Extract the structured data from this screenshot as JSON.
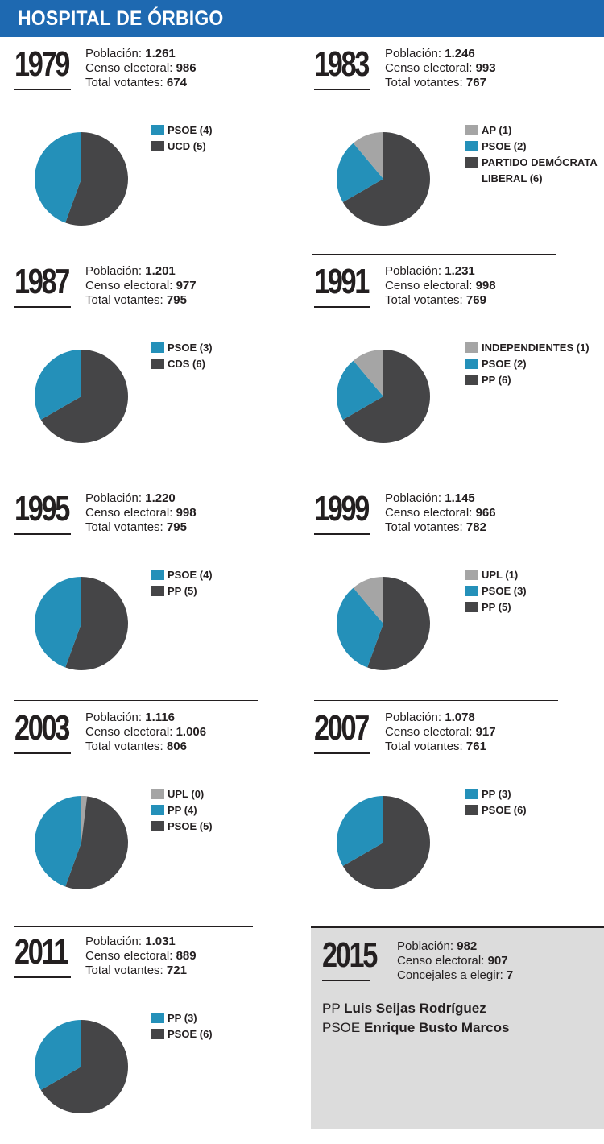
{
  "header": {
    "title": "HOSPITAL DE ÓRBIGO"
  },
  "labels": {
    "poblacion": "Población:",
    "censo": "Censo electoral:",
    "votantes": "Total votantes:",
    "concejales": "Concejales a elegir:"
  },
  "colors": {
    "gray": "#a5a5a5",
    "blue": "#2490b9",
    "dark": "#454547"
  },
  "elections": [
    {
      "year": "1979",
      "poblacion": "1.261",
      "censo": "986",
      "votantes": "674",
      "legend": [
        {
          "label": "PSOE (4)",
          "color": "blue"
        },
        {
          "label": "UCD (5)",
          "color": "dark"
        }
      ]
    },
    {
      "year": "1983",
      "poblacion": "1.246",
      "censo": "993",
      "votantes": "767",
      "legend": [
        {
          "label": "AP (1)",
          "color": "gray"
        },
        {
          "label": "PSOE (2)",
          "color": "blue"
        },
        {
          "label": "PARTIDO DEMÓCRATA",
          "color": "dark"
        },
        {
          "label": "LIBERAL (6)",
          "color": null
        }
      ]
    },
    {
      "year": "1987",
      "poblacion": "1.201",
      "censo": "977",
      "votantes": "795",
      "legend": [
        {
          "label": "PSOE (3)",
          "color": "blue"
        },
        {
          "label": "CDS (6)",
          "color": "dark"
        }
      ]
    },
    {
      "year": "1991",
      "poblacion": "1.231",
      "censo": "998",
      "votantes": "769",
      "legend": [
        {
          "label": "INDEPENDIENTES (1)",
          "color": "gray"
        },
        {
          "label": "PSOE (2)",
          "color": "blue"
        },
        {
          "label": "PP (6)",
          "color": "dark"
        }
      ]
    },
    {
      "year": "1995",
      "poblacion": "1.220",
      "censo": "998",
      "votantes": "795",
      "legend": [
        {
          "label": "PSOE (4)",
          "color": "blue"
        },
        {
          "label": "PP (5)",
          "color": "dark"
        }
      ]
    },
    {
      "year": "1999",
      "poblacion": "1.145",
      "censo": "966",
      "votantes": "782",
      "legend": [
        {
          "label": "UPL (1)",
          "color": "gray"
        },
        {
          "label": "PSOE (3)",
          "color": "blue"
        },
        {
          "label": "PP (5)",
          "color": "dark"
        }
      ]
    },
    {
      "year": "2003",
      "poblacion": "1.116",
      "censo": "1.006",
      "votantes": "806",
      "legend": [
        {
          "label": "UPL (0)",
          "color": "gray"
        },
        {
          "label": "PP (4)",
          "color": "blue"
        },
        {
          "label": "PSOE (5)",
          "color": "dark"
        }
      ]
    },
    {
      "year": "2007",
      "poblacion": "1.078",
      "censo": "917",
      "votantes": "761",
      "legend": [
        {
          "label": "PP (3)",
          "color": "blue"
        },
        {
          "label": "PSOE (6)",
          "color": "dark"
        }
      ]
    },
    {
      "year": "2011",
      "poblacion": "1.031",
      "censo": "889",
      "votantes": "721",
      "legend": [
        {
          "label": "PP (3)",
          "color": "blue"
        },
        {
          "label": "PSOE (6)",
          "color": "dark"
        }
      ]
    }
  ],
  "upcoming": {
    "year": "2015",
    "poblacion": "982",
    "censo": "907",
    "concejales": "7",
    "candidates": [
      {
        "party": "PP",
        "name": "Luis Seijas Rodríguez"
      },
      {
        "party": "PSOE",
        "name": "Enrique Busto Marcos"
      }
    ]
  },
  "chart_data": [
    {
      "type": "pie",
      "title": "1979",
      "categories": [
        "PSOE",
        "UCD"
      ],
      "values": [
        4,
        5
      ],
      "colors": [
        "#2490b9",
        "#454547"
      ]
    },
    {
      "type": "pie",
      "title": "1983",
      "categories": [
        "AP",
        "PSOE",
        "PARTIDO DEMÓCRATA LIBERAL"
      ],
      "values": [
        1,
        2,
        6
      ],
      "colors": [
        "#a5a5a5",
        "#2490b9",
        "#454547"
      ]
    },
    {
      "type": "pie",
      "title": "1987",
      "categories": [
        "PSOE",
        "CDS"
      ],
      "values": [
        3,
        6
      ],
      "colors": [
        "#2490b9",
        "#454547"
      ]
    },
    {
      "type": "pie",
      "title": "1991",
      "categories": [
        "INDEPENDIENTES",
        "PSOE",
        "PP"
      ],
      "values": [
        1,
        2,
        6
      ],
      "colors": [
        "#a5a5a5",
        "#2490b9",
        "#454547"
      ]
    },
    {
      "type": "pie",
      "title": "1995",
      "categories": [
        "PSOE",
        "PP"
      ],
      "values": [
        4,
        5
      ],
      "colors": [
        "#2490b9",
        "#454547"
      ]
    },
    {
      "type": "pie",
      "title": "1999",
      "categories": [
        "UPL",
        "PSOE",
        "PP"
      ],
      "values": [
        1,
        3,
        5
      ],
      "colors": [
        "#a5a5a5",
        "#2490b9",
        "#454547"
      ]
    },
    {
      "type": "pie",
      "title": "2003",
      "categories": [
        "UPL",
        "PP",
        "PSOE"
      ],
      "values": [
        0,
        4,
        5
      ],
      "colors": [
        "#a5a5a5",
        "#2490b9",
        "#454547"
      ]
    },
    {
      "type": "pie",
      "title": "2007",
      "categories": [
        "PP",
        "PSOE"
      ],
      "values": [
        3,
        6
      ],
      "colors": [
        "#2490b9",
        "#454547"
      ]
    },
    {
      "type": "pie",
      "title": "2011",
      "categories": [
        "PP",
        "PSOE"
      ],
      "values": [
        3,
        6
      ],
      "colors": [
        "#2490b9",
        "#454547"
      ]
    }
  ]
}
